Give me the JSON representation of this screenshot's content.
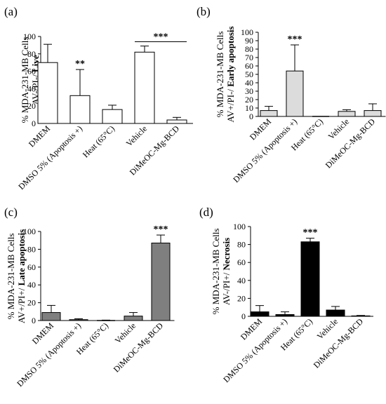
{
  "chart_data": [
    {
      "type": "bar",
      "panel_label": "(a)",
      "ylabel_main": "% MDA-231-MB Cells",
      "ylabel_prefix": "AV-/PI-/",
      "ylabel_bold": "Live",
      "ylim": [
        0,
        100
      ],
      "yticks": [
        "0",
        "20",
        "40",
        "60",
        "80",
        "100"
      ],
      "categories": [
        "DMEM",
        "DMSO 5% (Apoptosis +)",
        "Heat (65°C)",
        "Vehicle",
        "DiMeOC-Mg-BCD"
      ],
      "values": [
        70,
        32,
        16,
        82,
        4
      ],
      "errors": [
        21,
        30,
        5,
        7,
        3
      ],
      "bar_color": "#ffffff",
      "annotations": [
        {
          "text": "**",
          "category_index": 1
        },
        {
          "text": "***",
          "from_index": 3,
          "to_index": 4,
          "bracket_y": 94
        }
      ]
    },
    {
      "type": "bar",
      "panel_label": "(b)",
      "ylabel_main": "% MDA-231-MB Cells",
      "ylabel_prefix": "AV+/PI-/",
      "ylabel_bold": "Early apoptosis",
      "ylim": [
        0,
        100
      ],
      "yticks": [
        "0",
        "10",
        "20",
        "30",
        "40",
        "50",
        "60",
        "70",
        "80",
        "90",
        "100"
      ],
      "categories": [
        "DMEM",
        "DMSO 5% (Apoptosis +)",
        "Heat (65°C)",
        "Vehicle",
        "DiMeOC-Mg-BCD"
      ],
      "values": [
        7,
        54,
        0,
        6,
        7
      ],
      "errors": [
        5,
        31,
        0,
        2,
        8
      ],
      "bar_color": "#dcdcdc",
      "annotations": [
        {
          "text": "***",
          "category_index": 1
        }
      ]
    },
    {
      "type": "bar",
      "panel_label": "(c)",
      "ylabel_main": "% MDA-231-MB Cells",
      "ylabel_prefix": "AV+/PI+/",
      "ylabel_bold": "Late apoptosis",
      "ylim": [
        0,
        100
      ],
      "yticks": [
        "0",
        "20",
        "40",
        "60",
        "80",
        "100"
      ],
      "categories": [
        "DMEM",
        "DMSO 5% (Apoptosis +)",
        "Heat (65°C)",
        "Vehicle",
        "DiMeOC-Mg-BCD"
      ],
      "values": [
        9,
        1,
        0,
        5,
        87
      ],
      "errors": [
        8,
        1,
        0.5,
        4,
        9
      ],
      "bar_color": "#7f7f7f",
      "annotations": [
        {
          "text": "***",
          "category_index": 4
        }
      ]
    },
    {
      "type": "bar",
      "panel_label": "(d)",
      "ylabel_main": "% MDA-231-MB Cells",
      "ylabel_prefix": "AV-/PI+/",
      "ylabel_bold": "Necrosis",
      "ylim": [
        0,
        100
      ],
      "yticks": [
        "0",
        "20",
        "40",
        "60",
        "80",
        "100"
      ],
      "categories": [
        "DMEM",
        "DMSO 5% (Apoptosis +)",
        "Heat (65°C)",
        "Vehicle",
        "DiMeOC-Mg-BCD"
      ],
      "values": [
        5,
        2,
        83,
        7,
        0.5
      ],
      "errors": [
        7,
        3,
        4,
        4,
        0.5
      ],
      "bar_color": "#000000",
      "annotations": [
        {
          "text": "***",
          "category_index": 2
        }
      ]
    }
  ]
}
